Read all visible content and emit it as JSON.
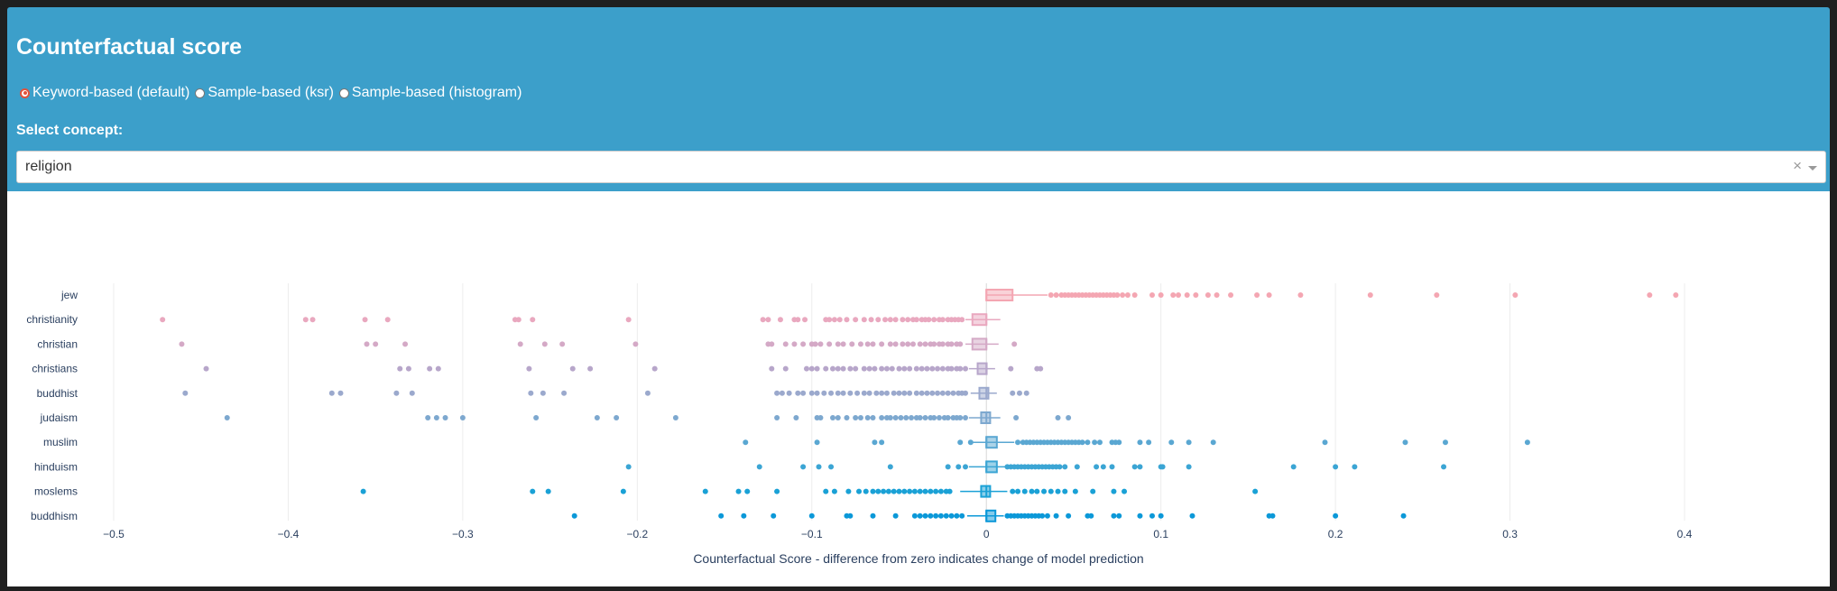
{
  "panel": {
    "title": "Counterfactual score",
    "radios": [
      {
        "label": "Keyword-based (default)",
        "checked": true
      },
      {
        "label": "Sample-based (ksr)",
        "checked": false
      },
      {
        "label": "Sample-based (histogram)",
        "checked": false
      }
    ],
    "select_label": "Select concept:",
    "selected_concept": "religion",
    "clear_glyph": "×"
  },
  "chart_data": {
    "type": "box",
    "xlabel": "Counterfactual Score - difference from zero indicates change of model prediction",
    "xlim": [
      -0.5,
      0.4
    ],
    "xticks": [
      -0.5,
      -0.4,
      -0.3,
      -0.2,
      -0.1,
      0,
      0.1,
      0.2,
      0.3,
      0.4
    ],
    "xtick_labels": [
      "−0.5",
      "−0.4",
      "−0.3",
      "−0.2",
      "−0.1",
      "0",
      "0.1",
      "0.2",
      "0.3",
      "0.4"
    ],
    "grid": true,
    "series": [
      {
        "name": "jew",
        "color": "#f4a6b2",
        "box": [
          0,
          0,
          0.015
        ],
        "whisker": [
          0,
          0.035
        ],
        "points": [
          0.037,
          0.04,
          0.043,
          0.045,
          0.047,
          0.049,
          0.051,
          0.053,
          0.055,
          0.057,
          0.059,
          0.061,
          0.063,
          0.065,
          0.067,
          0.069,
          0.071,
          0.073,
          0.075,
          0.078,
          0.081,
          0.085,
          0.095,
          0.1,
          0.107,
          0.11,
          0.115,
          0.12,
          0.127,
          0.132,
          0.14,
          0.155,
          0.162,
          0.18,
          0.22,
          0.258,
          0.303,
          0.38,
          0.395
        ]
      },
      {
        "name": "christianity",
        "color": "#e9a8bf",
        "box": [
          -0.008,
          0,
          0
        ],
        "whisker": [
          -0.012,
          0.008
        ],
        "points": [
          -0.472,
          -0.39,
          -0.386,
          -0.356,
          -0.343,
          -0.27,
          -0.268,
          -0.26,
          -0.205,
          -0.128,
          -0.125,
          -0.118,
          -0.11,
          -0.108,
          -0.104,
          -0.092,
          -0.09,
          -0.087,
          -0.084,
          -0.08,
          -0.075,
          -0.07,
          -0.066,
          -0.062,
          -0.058,
          -0.055,
          -0.052,
          -0.048,
          -0.045,
          -0.042,
          -0.04,
          -0.037,
          -0.035,
          -0.033,
          -0.03,
          -0.027,
          -0.025,
          -0.022,
          -0.02,
          -0.018,
          -0.016,
          -0.014
        ]
      },
      {
        "name": "christian",
        "color": "#d4a9c6",
        "box": [
          -0.008,
          0,
          0
        ],
        "whisker": [
          -0.012,
          0.007
        ],
        "points": [
          -0.461,
          -0.355,
          -0.35,
          -0.333,
          -0.267,
          -0.253,
          -0.243,
          -0.201,
          -0.125,
          -0.123,
          -0.115,
          -0.11,
          -0.105,
          -0.1,
          -0.098,
          -0.095,
          -0.09,
          -0.085,
          -0.082,
          -0.077,
          -0.072,
          -0.068,
          -0.065,
          -0.06,
          -0.055,
          -0.052,
          -0.048,
          -0.045,
          -0.042,
          -0.038,
          -0.035,
          -0.032,
          -0.03,
          -0.027,
          -0.025,
          -0.022,
          -0.02,
          -0.017,
          -0.015,
          0.016
        ]
      },
      {
        "name": "christians",
        "color": "#b7a6ca",
        "box": [
          -0.005,
          0,
          0
        ],
        "whisker": [
          -0.01,
          0.005
        ],
        "points": [
          -0.447,
          -0.336,
          -0.331,
          -0.319,
          -0.314,
          -0.262,
          -0.237,
          -0.227,
          -0.19,
          -0.123,
          -0.115,
          -0.103,
          -0.1,
          -0.097,
          -0.092,
          -0.088,
          -0.085,
          -0.082,
          -0.078,
          -0.075,
          -0.07,
          -0.067,
          -0.064,
          -0.06,
          -0.057,
          -0.054,
          -0.05,
          -0.047,
          -0.044,
          -0.04,
          -0.037,
          -0.034,
          -0.031,
          -0.028,
          -0.025,
          -0.022,
          -0.02,
          -0.017,
          -0.015,
          -0.012,
          0.014,
          0.029,
          0.031
        ]
      },
      {
        "name": "buddhist",
        "color": "#9ba9cd",
        "box": [
          -0.004,
          0,
          0
        ],
        "whisker": [
          -0.009,
          0.006
        ],
        "points": [
          -0.459,
          -0.375,
          -0.37,
          -0.338,
          -0.329,
          -0.261,
          -0.254,
          -0.242,
          -0.194,
          -0.12,
          -0.117,
          -0.113,
          -0.108,
          -0.105,
          -0.1,
          -0.097,
          -0.093,
          -0.089,
          -0.085,
          -0.082,
          -0.078,
          -0.074,
          -0.07,
          -0.067,
          -0.063,
          -0.06,
          -0.057,
          -0.053,
          -0.05,
          -0.047,
          -0.044,
          -0.04,
          -0.037,
          -0.034,
          -0.031,
          -0.028,
          -0.025,
          -0.022,
          -0.019,
          -0.016,
          -0.014,
          -0.012,
          0.015,
          0.019,
          0.023
        ]
      },
      {
        "name": "judaism",
        "color": "#7da8cf",
        "box": [
          -0.003,
          0,
          0
        ],
        "whisker": [
          -0.01,
          0.008
        ],
        "points": [
          -0.435,
          -0.32,
          -0.315,
          -0.31,
          -0.3,
          -0.258,
          -0.223,
          -0.212,
          -0.178,
          -0.12,
          -0.109,
          -0.097,
          -0.095,
          -0.088,
          -0.085,
          -0.08,
          -0.075,
          -0.072,
          -0.068,
          -0.065,
          -0.06,
          -0.057,
          -0.055,
          -0.052,
          -0.049,
          -0.046,
          -0.043,
          -0.04,
          -0.038,
          -0.035,
          -0.032,
          -0.03,
          -0.027,
          -0.024,
          -0.022,
          -0.019,
          -0.017,
          -0.015,
          -0.012,
          0.017,
          0.041,
          0.047
        ]
      },
      {
        "name": "muslim",
        "color": "#5aa7d2",
        "box": [
          0,
          0,
          0.006
        ],
        "whisker": [
          -0.008,
          0.016
        ],
        "points": [
          -0.138,
          -0.097,
          -0.064,
          -0.06,
          -0.015,
          -0.009,
          0.018,
          0.021,
          0.023,
          0.025,
          0.027,
          0.029,
          0.031,
          0.033,
          0.035,
          0.037,
          0.039,
          0.041,
          0.043,
          0.045,
          0.047,
          0.049,
          0.051,
          0.053,
          0.055,
          0.058,
          0.062,
          0.065,
          0.072,
          0.074,
          0.076,
          0.088,
          0.093,
          0.106,
          0.116,
          0.13,
          0.194,
          0.24,
          0.263,
          0.31
        ]
      },
      {
        "name": "hinduism",
        "color": "#3ba5d4",
        "box": [
          0,
          0,
          0.006
        ],
        "whisker": [
          -0.01,
          0.012
        ],
        "points": [
          -0.205,
          -0.13,
          -0.105,
          -0.096,
          -0.089,
          -0.055,
          -0.022,
          -0.016,
          -0.012,
          0.012,
          0.014,
          0.016,
          0.018,
          0.02,
          0.022,
          0.024,
          0.026,
          0.028,
          0.03,
          0.032,
          0.034,
          0.036,
          0.038,
          0.04,
          0.042,
          0.045,
          0.052,
          0.063,
          0.067,
          0.072,
          0.085,
          0.088,
          0.1,
          0.101,
          0.116,
          0.176,
          0.2,
          0.211,
          0.262
        ]
      },
      {
        "name": "moslems",
        "color": "#1aa1d6",
        "box": [
          -0.003,
          0,
          0
        ],
        "whisker": [
          -0.015,
          0.012
        ],
        "points": [
          -0.357,
          -0.26,
          -0.251,
          -0.208,
          -0.161,
          -0.142,
          -0.137,
          -0.12,
          -0.092,
          -0.087,
          -0.079,
          -0.073,
          -0.069,
          -0.065,
          -0.062,
          -0.059,
          -0.056,
          -0.053,
          -0.05,
          -0.047,
          -0.044,
          -0.041,
          -0.038,
          -0.035,
          -0.032,
          -0.029,
          -0.026,
          -0.023,
          -0.021,
          0.015,
          0.018,
          0.022,
          0.026,
          0.029,
          0.033,
          0.037,
          0.041,
          0.045,
          0.051,
          0.061,
          0.073,
          0.079,
          0.154
        ]
      },
      {
        "name": "buddhism",
        "color": "#0b98d8",
        "box": [
          0,
          0,
          0.004
        ],
        "whisker": [
          -0.011,
          0.01
        ],
        "points": [
          -0.236,
          -0.152,
          -0.139,
          -0.122,
          -0.1,
          -0.08,
          -0.078,
          -0.065,
          -0.052,
          -0.041,
          -0.038,
          -0.035,
          -0.032,
          -0.029,
          -0.026,
          -0.023,
          -0.02,
          -0.017,
          -0.014,
          0.012,
          0.014,
          0.016,
          0.018,
          0.02,
          0.022,
          0.024,
          0.026,
          0.028,
          0.03,
          0.032,
          0.035,
          0.04,
          0.047,
          0.058,
          0.06,
          0.073,
          0.076,
          0.088,
          0.095,
          0.1,
          0.118,
          0.162,
          0.164,
          0.2,
          0.239
        ]
      }
    ]
  }
}
